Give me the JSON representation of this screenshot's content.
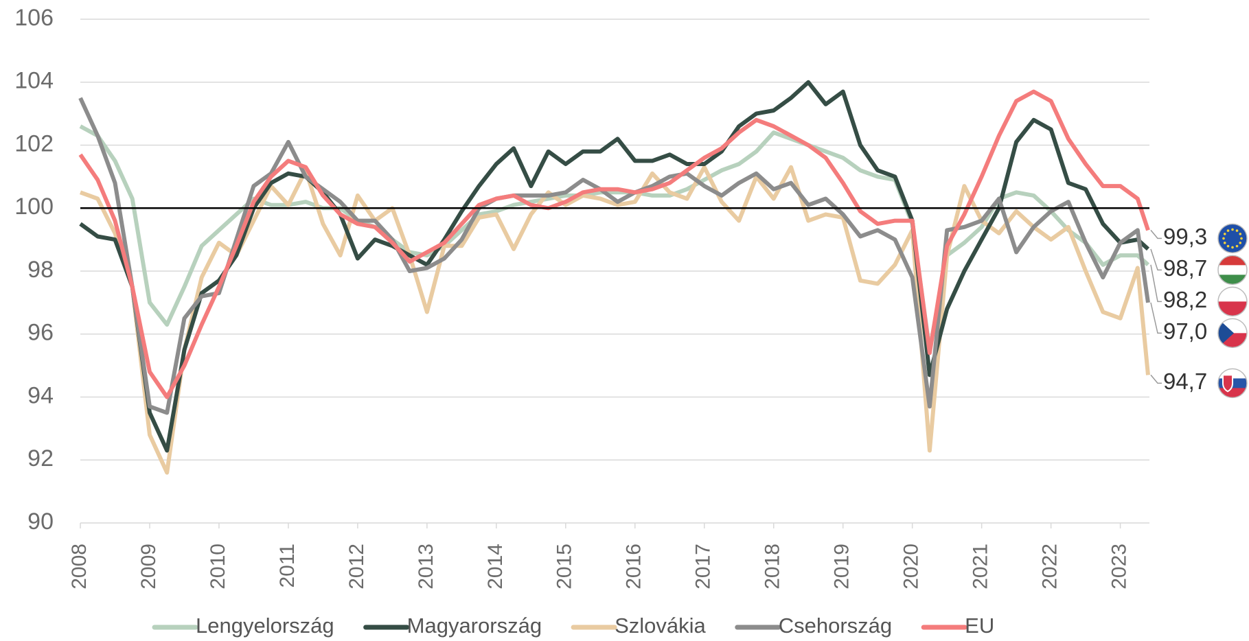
{
  "chart_data": {
    "type": "line",
    "x": [
      2008,
      2008.25,
      2008.5,
      2008.75,
      2009,
      2009.25,
      2009.5,
      2009.75,
      2010,
      2010.25,
      2010.5,
      2010.75,
      2011,
      2011.25,
      2011.5,
      2011.75,
      2012,
      2012.25,
      2012.5,
      2012.75,
      2013,
      2013.25,
      2013.5,
      2013.75,
      2014,
      2014.25,
      2014.5,
      2014.75,
      2015,
      2015.25,
      2015.5,
      2015.75,
      2016,
      2016.25,
      2016.5,
      2016.75,
      2017,
      2017.25,
      2017.5,
      2017.75,
      2018,
      2018.25,
      2018.5,
      2018.75,
      2019,
      2019.25,
      2019.5,
      2019.75,
      2020,
      2020.25,
      2020.5,
      2020.75,
      2021,
      2021.25,
      2021.5,
      2021.75,
      2022,
      2022.25,
      2022.5,
      2022.75,
      2023,
      2023.25,
      2023.4
    ],
    "series": [
      {
        "name": "Lengyelország",
        "color": "#b7d1bd",
        "values": [
          102.6,
          102.3,
          101.5,
          100.3,
          97.0,
          96.3,
          97.5,
          98.8,
          99.3,
          99.8,
          100.3,
          100.1,
          100.1,
          100.2,
          100.0,
          100.0,
          99.6,
          99.4,
          99.0,
          98.6,
          98.5,
          98.8,
          99.3,
          99.8,
          99.9,
          100.1,
          100.2,
          100.3,
          100.4,
          100.4,
          100.5,
          100.5,
          100.5,
          100.4,
          100.4,
          100.6,
          100.9,
          101.2,
          101.4,
          101.8,
          102.4,
          102.2,
          102.0,
          101.8,
          101.6,
          101.2,
          101.0,
          100.9,
          99.5,
          95.5,
          98.5,
          98.9,
          99.4,
          100.3,
          100.5,
          100.4,
          99.9,
          99.3,
          98.9,
          98.2,
          98.5,
          98.5,
          98.2
        ],
        "value_labels": [
          null,
          null,
          null,
          null,
          null,
          null,
          null,
          null,
          null,
          null,
          null,
          null,
          null,
          null,
          null,
          null,
          null,
          null,
          null,
          null,
          null,
          null,
          null,
          null,
          null,
          null,
          null,
          null,
          null,
          null,
          null,
          null,
          null,
          null,
          null,
          null,
          null,
          null,
          null,
          null,
          null,
          null,
          null,
          null,
          null,
          null,
          null,
          null,
          null,
          null,
          null,
          null,
          null,
          null,
          null,
          null,
          null,
          null,
          null,
          null,
          null,
          null,
          "98,2"
        ]
      },
      {
        "name": "Magyarország",
        "color": "#354d45",
        "values": [
          99.5,
          99.1,
          99.0,
          97.5,
          93.5,
          92.3,
          95.5,
          97.3,
          97.7,
          98.5,
          100.0,
          100.8,
          101.1,
          101.0,
          100.5,
          99.8,
          98.4,
          99.0,
          98.8,
          98.5,
          98.2,
          99.0,
          99.9,
          100.7,
          101.4,
          101.9,
          100.7,
          101.8,
          101.4,
          101.8,
          101.8,
          102.2,
          101.5,
          101.5,
          101.7,
          101.4,
          101.4,
          101.8,
          102.6,
          103.0,
          103.1,
          103.5,
          104.0,
          103.3,
          103.7,
          102.0,
          101.2,
          101.0,
          99.6,
          94.7,
          96.8,
          98.0,
          99.0,
          100.0,
          102.1,
          102.8,
          102.5,
          100.8,
          100.6,
          99.5,
          98.9,
          99.0,
          98.7
        ],
        "value_labels": [
          null,
          null,
          null,
          null,
          null,
          null,
          null,
          null,
          null,
          null,
          null,
          null,
          null,
          null,
          null,
          null,
          null,
          null,
          null,
          null,
          null,
          null,
          null,
          null,
          null,
          null,
          null,
          null,
          null,
          null,
          null,
          null,
          null,
          null,
          null,
          null,
          null,
          null,
          null,
          null,
          null,
          null,
          null,
          null,
          null,
          null,
          null,
          null,
          null,
          null,
          null,
          null,
          null,
          null,
          null,
          null,
          null,
          null,
          null,
          null,
          null,
          null,
          "98,7"
        ]
      },
      {
        "name": "Szlovákia",
        "color": "#e9cba1",
        "values": [
          100.5,
          100.3,
          99.2,
          97.5,
          92.8,
          91.6,
          95.5,
          97.8,
          98.9,
          98.5,
          99.6,
          100.7,
          100.1,
          101.2,
          99.5,
          98.5,
          100.4,
          99.6,
          100.0,
          98.5,
          96.7,
          98.8,
          98.8,
          99.7,
          99.8,
          98.7,
          99.8,
          100.5,
          100.1,
          100.4,
          100.3,
          100.1,
          100.2,
          101.1,
          100.5,
          100.3,
          101.3,
          100.2,
          99.6,
          101.0,
          100.3,
          101.3,
          99.6,
          99.8,
          99.7,
          97.7,
          97.6,
          98.2,
          99.3,
          92.3,
          98.5,
          100.7,
          99.6,
          99.2,
          99.9,
          99.4,
          99.0,
          99.4,
          98.0,
          96.7,
          96.5,
          98.1,
          94.7
        ],
        "value_labels": [
          null,
          null,
          null,
          null,
          null,
          null,
          null,
          null,
          null,
          null,
          null,
          null,
          null,
          null,
          null,
          null,
          null,
          null,
          null,
          null,
          null,
          null,
          null,
          null,
          null,
          null,
          null,
          null,
          null,
          null,
          null,
          null,
          null,
          null,
          null,
          null,
          null,
          null,
          null,
          null,
          null,
          null,
          null,
          null,
          null,
          null,
          null,
          null,
          null,
          null,
          null,
          null,
          null,
          null,
          null,
          null,
          null,
          null,
          null,
          null,
          null,
          null,
          "94,7"
        ]
      },
      {
        "name": "Csehország",
        "color": "#8c8c8c",
        "values": [
          103.5,
          102.3,
          100.8,
          97.5,
          93.7,
          93.5,
          96.5,
          97.2,
          97.3,
          99.0,
          100.7,
          101.1,
          102.1,
          101.0,
          100.6,
          100.2,
          99.6,
          99.6,
          99.0,
          98.0,
          98.1,
          98.4,
          99.0,
          100.0,
          100.3,
          100.4,
          100.4,
          100.4,
          100.5,
          100.9,
          100.6,
          100.2,
          100.5,
          100.7,
          101.0,
          101.1,
          100.7,
          100.4,
          100.8,
          101.1,
          100.6,
          100.8,
          100.1,
          100.3,
          99.8,
          99.1,
          99.3,
          99.0,
          97.8,
          93.7,
          99.3,
          99.4,
          99.6,
          100.3,
          98.6,
          99.4,
          99.9,
          100.2,
          98.9,
          97.8,
          98.9,
          99.3,
          97.0
        ],
        "value_labels": [
          null,
          null,
          null,
          null,
          null,
          null,
          null,
          null,
          null,
          null,
          null,
          null,
          null,
          null,
          null,
          null,
          null,
          null,
          null,
          null,
          null,
          null,
          null,
          null,
          null,
          null,
          null,
          null,
          null,
          null,
          null,
          null,
          null,
          null,
          null,
          null,
          null,
          null,
          null,
          null,
          null,
          null,
          null,
          null,
          null,
          null,
          null,
          null,
          null,
          null,
          null,
          null,
          null,
          null,
          null,
          null,
          null,
          null,
          null,
          null,
          null,
          null,
          "97,0"
        ]
      },
      {
        "name": "EU",
        "color": "#f47c7c",
        "values": [
          101.7,
          100.9,
          99.6,
          97.5,
          94.8,
          94.0,
          95.0,
          96.3,
          97.5,
          98.8,
          100.2,
          101.0,
          101.5,
          101.3,
          100.4,
          99.8,
          99.5,
          99.4,
          98.9,
          98.3,
          98.6,
          98.9,
          99.5,
          100.1,
          100.3,
          100.4,
          100.1,
          100.0,
          100.2,
          100.5,
          100.6,
          100.6,
          100.5,
          100.6,
          100.8,
          101.2,
          101.6,
          101.9,
          102.4,
          102.8,
          102.6,
          102.3,
          102.0,
          101.6,
          100.8,
          99.9,
          99.5,
          99.6,
          99.6,
          95.4,
          98.8,
          99.8,
          101.0,
          102.3,
          103.4,
          103.7,
          103.4,
          102.2,
          101.4,
          100.7,
          100.7,
          100.3,
          99.3
        ],
        "value_labels": [
          null,
          null,
          null,
          null,
          null,
          null,
          null,
          null,
          null,
          null,
          null,
          null,
          null,
          null,
          null,
          null,
          null,
          null,
          null,
          null,
          null,
          null,
          null,
          null,
          null,
          null,
          null,
          null,
          null,
          null,
          null,
          null,
          null,
          null,
          null,
          null,
          null,
          null,
          null,
          null,
          null,
          null,
          null,
          null,
          null,
          null,
          null,
          null,
          null,
          null,
          null,
          null,
          null,
          null,
          null,
          null,
          null,
          null,
          null,
          null,
          null,
          null,
          "99,3"
        ]
      }
    ],
    "xlim": [
      2008,
      2023.42
    ],
    "xticks": [
      2008,
      2009,
      2010,
      2011,
      2012,
      2013,
      2014,
      2015,
      2016,
      2017,
      2018,
      2019,
      2020,
      2021,
      2022,
      2023
    ],
    "ylim": [
      90,
      106
    ],
    "yticks": [
      90,
      92,
      94,
      96,
      98,
      100,
      102,
      104,
      106
    ],
    "refline": 100,
    "grid": true,
    "legend": "bottom"
  }
}
